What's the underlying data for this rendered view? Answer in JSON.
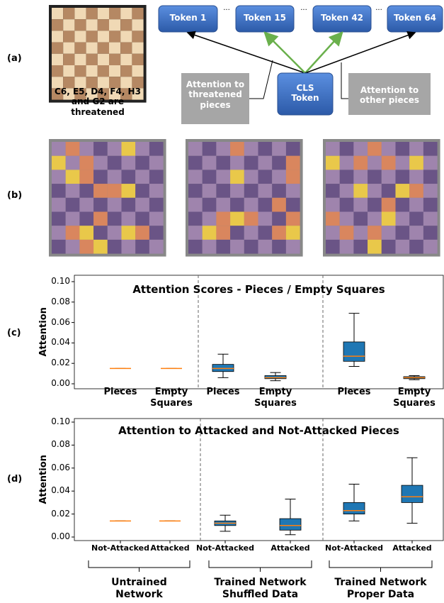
{
  "panel_labels": [
    "(a)",
    "(b)",
    "(c)",
    "(d)"
  ],
  "diagram": {
    "tokens": [
      "Token 1",
      "Token 15",
      "Token 42",
      "Token 64"
    ],
    "ellipsis": "...",
    "cls": "CLS Token",
    "threatened_note": "Attention to threatened pieces",
    "other_note": "Attention to other pieces",
    "caption": "C6, E5, D4, F4, H3 and G2 are threatened"
  },
  "chart_data": [
    {
      "type": "box",
      "title": "Attention Scores - Pieces / Empty Squares",
      "y_label": "Attention",
      "categories": [
        "Pieces",
        "Empty Squares",
        "Pieces",
        "Empty Squares",
        "Pieces",
        "Empty Squares"
      ],
      "boxes": [
        {
          "min": 0.015,
          "q1": 0.015,
          "median": 0.015,
          "q3": 0.015,
          "max": 0.015
        },
        {
          "min": 0.015,
          "q1": 0.015,
          "median": 0.015,
          "q3": 0.015,
          "max": 0.015
        },
        {
          "min": 0.006,
          "q1": 0.012,
          "median": 0.015,
          "q3": 0.019,
          "max": 0.029
        },
        {
          "min": 0.003,
          "q1": 0.005,
          "median": 0.006,
          "q3": 0.008,
          "max": 0.011
        },
        {
          "min": 0.017,
          "q1": 0.022,
          "median": 0.027,
          "q3": 0.041,
          "max": 0.069
        },
        {
          "min": 0.004,
          "q1": 0.005,
          "median": 0.006,
          "q3": 0.007,
          "max": 0.008
        }
      ],
      "ylim": [
        0,
        0.1
      ],
      "yticks": [
        {
          "value": 0,
          "label": "0.00"
        },
        0.02,
        0.04,
        0.06,
        0.08,
        {
          "value": 0.1,
          "label": "0.10"
        }
      ],
      "color": "#1f77b4",
      "median_color": "#ff7f0e"
    },
    {
      "type": "box",
      "title": "Attention to Attacked and Not-Attacked Pieces",
      "y_label": "Attention",
      "categories": [
        "Not-Attacked",
        "Attacked",
        "Not-Attacked",
        "Attacked",
        "Not-Attacked",
        "Attacked"
      ],
      "boxes": [
        {
          "min": 0.014,
          "q1": 0.014,
          "median": 0.014,
          "q3": 0.014,
          "max": 0.014
        },
        {
          "min": 0.014,
          "q1": 0.014,
          "median": 0.014,
          "q3": 0.014,
          "max": 0.014
        },
        {
          "min": 0.005,
          "q1": 0.01,
          "median": 0.012,
          "q3": 0.014,
          "max": 0.019
        },
        {
          "min": 0.002,
          "q1": 0.006,
          "median": 0.01,
          "q3": 0.016,
          "max": 0.033
        },
        {
          "min": 0.014,
          "q1": 0.02,
          "median": 0.023,
          "q3": 0.03,
          "max": 0.046
        },
        {
          "min": 0.012,
          "q1": 0.03,
          "median": 0.035,
          "q3": 0.045,
          "max": 0.069
        }
      ],
      "ylim": [
        0,
        0.1
      ],
      "yticks": [
        {
          "value": 0,
          "label": "0.00"
        },
        0.02,
        0.04,
        0.06,
        0.08,
        {
          "value": 0.1,
          "label": "0.10"
        }
      ],
      "groups": [
        "Untrained Network",
        "Trained Network Shuffled Data",
        "Trained Network Proper Data"
      ],
      "color": "#1f77b4",
      "median_color": "#ff7f0e"
    }
  ]
}
